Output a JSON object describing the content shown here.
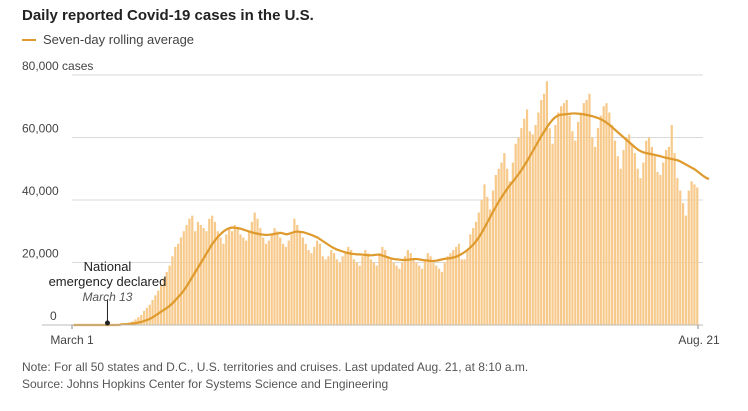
{
  "header": {
    "title": "Daily reported Covid-19 cases in the U.S.",
    "legend_label": "Seven-day rolling average"
  },
  "footer": {
    "note": "Note: For all 50 states and D.C., U.S. territories and cruises. Last updated Aug. 21, at 8:10 a.m.",
    "source": "Source: Johns Hopkins Center for Systems Science and Engineering"
  },
  "colors": {
    "bar": "#f7c98a",
    "line": "#de9a2c",
    "grid": "#d9d9d9",
    "axis": "#bbbbbb"
  },
  "chart_data": {
    "type": "bar",
    "x_start": "March 1",
    "x_end": "Aug. 21",
    "ylim": [
      0,
      80000
    ],
    "y_ticks": [
      {
        "value": 80000,
        "label": "80,000 cases"
      },
      {
        "value": 60000,
        "label": "60,000"
      },
      {
        "value": 40000,
        "label": "40,000"
      },
      {
        "value": 20000,
        "label": "20,000"
      },
      {
        "value": 0,
        "label": "0"
      }
    ],
    "x_tick_labels": [
      "March 1",
      "Aug. 21"
    ],
    "annotation": {
      "title_lines": [
        "National",
        "emergency declared"
      ],
      "date": "March 13"
    },
    "series": [
      {
        "name": "Daily reported cases",
        "kind": "bar",
        "values": [
          0,
          0,
          0,
          0,
          0,
          0,
          0,
          0,
          0,
          0,
          0,
          0,
          0,
          0,
          0,
          0,
          0,
          200,
          300,
          500,
          800,
          1200,
          1800,
          2500,
          3200,
          4500,
          5500,
          6500,
          8000,
          9500,
          11000,
          13000,
          15000,
          17000,
          19000,
          22000,
          25000,
          26000,
          28000,
          30000,
          32000,
          34000,
          35000,
          30000,
          33000,
          32000,
          31000,
          30000,
          34000,
          35000,
          33000,
          30000,
          28000,
          26000,
          29000,
          31000,
          30000,
          32000,
          31000,
          29000,
          28000,
          27000,
          30000,
          33000,
          36000,
          34000,
          31000,
          28000,
          26000,
          27000,
          29000,
          31000,
          30000,
          28000,
          26000,
          25000,
          27000,
          29000,
          34000,
          32000,
          30000,
          28000,
          26000,
          24000,
          23000,
          25000,
          27000,
          26000,
          22000,
          21000,
          22000,
          24000,
          23000,
          21000,
          20000,
          22000,
          23000,
          25000,
          24000,
          21000,
          20000,
          19000,
          22000,
          24000,
          23000,
          21000,
          20000,
          19000,
          23000,
          25000,
          24000,
          22000,
          21000,
          20000,
          19000,
          18000,
          20000,
          22000,
          24000,
          23000,
          21000,
          20000,
          19000,
          18000,
          21000,
          23000,
          22000,
          20000,
          19000,
          18000,
          17000,
          20000,
          22000,
          23000,
          24000,
          25000,
          26000,
          21000,
          21000,
          24000,
          29000,
          31000,
          33000,
          36000,
          40000,
          45000,
          41000,
          37000,
          43000,
          48000,
          50000,
          52000,
          55000,
          50000,
          46000,
          52000,
          58000,
          60000,
          63000,
          66000,
          69000,
          62000,
          61000,
          64000,
          68000,
          72000,
          74000,
          78000,
          63000,
          58000,
          64000,
          68000,
          70000,
          71000,
          72000,
          67000,
          62000,
          59000,
          65000,
          68000,
          71000,
          72000,
          74000,
          60000,
          57000,
          63000,
          67000,
          70000,
          71000,
          68000,
          64000,
          59000,
          54000,
          50000,
          56000,
          60000,
          61000,
          58000,
          55000,
          50000,
          47000,
          52000,
          59000,
          60000,
          57000,
          54000,
          49000,
          48000,
          52000,
          56000,
          57000,
          64000,
          55000,
          47000,
          43000,
          39000,
          35000,
          43000,
          46000,
          45000,
          44000
        ]
      },
      {
        "name": "Seven-day rolling average",
        "kind": "line",
        "values": [
          0,
          0,
          0,
          0,
          0,
          0,
          0,
          0,
          0,
          0,
          0,
          0,
          0,
          0,
          0,
          0,
          0,
          200,
          250,
          300,
          400,
          500,
          600,
          800,
          1000,
          1300,
          1600,
          2000,
          2500,
          3100,
          3700,
          4300,
          4900,
          5500,
          6200,
          7000,
          8000,
          9000,
          10000,
          11200,
          12500,
          14000,
          15500,
          17000,
          18500,
          20000,
          21500,
          23000,
          24500,
          26000,
          27200,
          28300,
          29200,
          30000,
          30600,
          31000,
          31200,
          31100,
          31000,
          30800,
          30500,
          30200,
          29900,
          29600,
          29400,
          29200,
          29000,
          28900,
          28800,
          28900,
          29000,
          29200,
          29300,
          29500,
          29300,
          29000,
          29200,
          29500,
          29800,
          29900,
          29800,
          29700,
          29400,
          29100,
          28800,
          28400,
          28000,
          27400,
          26800,
          26200,
          25600,
          25000,
          24500,
          24100,
          23800,
          23500,
          23200,
          23000,
          22800,
          22700,
          22600,
          22600,
          22500,
          22400,
          22300,
          22300,
          22400,
          22500,
          22500,
          22200,
          21900,
          21600,
          21300,
          21100,
          21000,
          20900,
          20800,
          20800,
          20900,
          21000,
          21100,
          21100,
          21000,
          20800,
          20700,
          20600,
          20500,
          20500,
          20600,
          20800,
          21000,
          21200,
          21300,
          21400,
          21600,
          21900,
          22300,
          22800,
          23400,
          24100,
          24900,
          25800,
          26900,
          28200,
          29700,
          31300,
          33000,
          34700,
          36400,
          38000,
          39600,
          41000,
          42400,
          43700,
          44900,
          46000,
          47200,
          48400,
          49700,
          51100,
          52600,
          54200,
          55800,
          57400,
          59000,
          60600,
          62000,
          63400,
          64700,
          65800,
          66600,
          67100,
          67300,
          67400,
          67500,
          67600,
          67700,
          67700,
          67600,
          67500,
          67400,
          67200,
          67000,
          66800,
          66500,
          66200,
          65800,
          65300,
          64700,
          64000,
          63200,
          62400,
          61600,
          60800,
          60000,
          59200,
          58400,
          57600,
          56800,
          56100,
          55600,
          55200,
          55000,
          54800,
          54600,
          54400,
          54200,
          54000,
          53700,
          53500,
          53300,
          53100,
          52900,
          52700,
          52300,
          51800,
          51300,
          50800,
          50300,
          49800,
          49100,
          48400,
          47700,
          47100,
          46700
        ]
      }
    ]
  }
}
